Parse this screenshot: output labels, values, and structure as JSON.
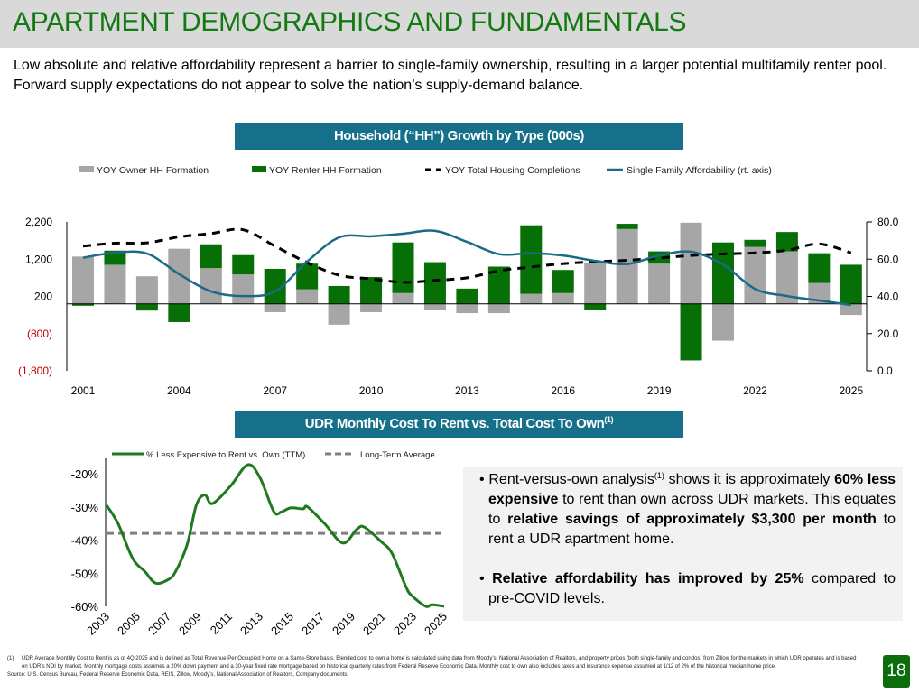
{
  "title": "APARTMENT DEMOGRAPHICS AND FUNDAMENTALS",
  "subtitle": "Low absolute and relative affordability represent a barrier to single-family ownership, resulting in a larger potential multifamily renter pool. Forward supply expectations do not appear to solve the nation’s supply-demand balance.",
  "colors": {
    "brand_green": "#137a13",
    "teal": "#16708a",
    "owner_gray": "#a6a6a6",
    "renter_green": "#067006",
    "affordability_line": "#1b6a87",
    "bg_gray": "#d9d9d9"
  },
  "section1": {
    "title": "Household (“HH”) Growth by Type (000s)"
  },
  "section2": {
    "title": "UDR Monthly Cost To Rent vs. Total Cost To Own",
    "superscript": "(1)"
  },
  "chart_data": [
    {
      "type": "bar",
      "stacked": true,
      "legend_position": "top",
      "x": [
        2001,
        2002,
        2003,
        2004,
        2005,
        2006,
        2007,
        2008,
        2009,
        2010,
        2011,
        2012,
        2013,
        2014,
        2015,
        2016,
        2017,
        2018,
        2019,
        2020,
        2021,
        2022,
        2023,
        2024,
        2025
      ],
      "x_tick_labels": [
        "2001",
        "2004",
        "2007",
        "2010",
        "2013",
        "2016",
        "2019",
        "2022",
        "2025"
      ],
      "y_left": {
        "ylim": [
          -1800,
          2200
        ],
        "tick_labels": [
          "2,200",
          "1,200",
          "200",
          "(800)",
          "(1,800)"
        ]
      },
      "y_right": {
        "ylim": [
          0,
          80
        ],
        "tick_labels": [
          "80.0",
          "60.0",
          "40.0",
          "20.0",
          "0.0"
        ]
      },
      "series": [
        {
          "name": "YOY Owner HH Formation",
          "kind": "bar",
          "axis": "left",
          "values": [
            1270,
            1050,
            740,
            1480,
            960,
            790,
            -225,
            390,
            -560,
            -225,
            290,
            -155,
            -250,
            -250,
            270,
            290,
            1110,
            2010,
            1080,
            2180,
            -990,
            1530,
            1410,
            560,
            -300
          ]
        },
        {
          "name": "YOY Renter HH Formation",
          "kind": "bar",
          "axis": "left",
          "values": [
            -50,
            380,
            -180,
            -490,
            640,
            520,
            940,
            690,
            480,
            720,
            1360,
            1120,
            410,
            1000,
            1840,
            620,
            -155,
            140,
            330,
            -1520,
            1650,
            190,
            520,
            800,
            1050
          ]
        },
        {
          "name": "YOY Total Housing Completions",
          "kind": "line-dashed",
          "axis": "left",
          "values": [
            1550,
            1630,
            1640,
            1800,
            1890,
            1990,
            1550,
            1110,
            770,
            670,
            580,
            630,
            700,
            890,
            990,
            1080,
            1130,
            1170,
            1230,
            1300,
            1340,
            1370,
            1440,
            1610,
            1370
          ]
        },
        {
          "name": "Single Family Affordability (rt. axis)",
          "kind": "line",
          "axis": "right",
          "values": [
            60.8,
            63.5,
            63,
            52,
            42.7,
            40.2,
            42.7,
            58.7,
            71.7,
            72.3,
            73.7,
            75.2,
            69.3,
            62.7,
            63.2,
            62,
            59.1,
            57.4,
            62,
            64,
            57.1,
            44,
            40.2,
            37.8,
            35.4
          ]
        }
      ]
    },
    {
      "type": "line",
      "legend_position": "top",
      "x_tick_labels": [
        "2003",
        "2005",
        "2007",
        "2009",
        "2011",
        "2013",
        "2015",
        "2017",
        "2019",
        "2021",
        "2023",
        "2025"
      ],
      "ylim": [
        -60,
        -20
      ],
      "y_tick_labels": [
        "-20%",
        "-30%",
        "-40%",
        "-50%",
        "-60%"
      ],
      "series": [
        {
          "name": "% Less Expensive to Rent vs. Own (TTM)",
          "x": [
            2003.0,
            2003.75,
            2004.7,
            2005.5,
            2006.2,
            2007.0,
            2007.5,
            2008.25,
            2008.85,
            2009.4,
            2009.9,
            2011.1,
            2012.2,
            2013.0,
            2013.9,
            2014.4,
            2015.0,
            2015.8,
            2016.1,
            2017.2,
            2018.4,
            2019.3,
            2019.8,
            2020.9,
            2021.6,
            2022.5,
            2022.9,
            2023.8,
            2024.2,
            2025.0
          ],
          "values": [
            -29.5,
            -35,
            -45.5,
            -49.5,
            -53,
            -52,
            -49.5,
            -41.4,
            -29.5,
            -26.4,
            -29,
            -23.6,
            -17.3,
            -21.2,
            -31.4,
            -31.5,
            -30.3,
            -30.6,
            -30,
            -35,
            -40.9,
            -36.8,
            -36.1,
            -40.5,
            -44,
            -54,
            -56.8,
            -60,
            -59.5,
            -60
          ]
        },
        {
          "name": "Long-Term Average",
          "kind": "dashed",
          "value": -38
        }
      ]
    }
  ],
  "callout": {
    "b1_a": "Rent-versus-own analysis",
    "b1_sup": "(1)",
    "b1_b": " shows it is approximately ",
    "b1_bold1": "60% less expensive",
    "b1_c": " to rent than own across UDR markets. This equates to ",
    "b1_bold2": "relative savings of approximately $3,300 per month",
    "b1_d": " to rent a UDR apartment home.",
    "b2_bold": "Relative affordability has improved by 25%",
    "b2_rest": " compared to pre-COVID levels."
  },
  "footnote": {
    "num": "(1)",
    "text": "UDR Average Monthly Cost to Rent is as of 4Q 2025 and is defined as Total Revenue Per Occupied Home on a Same-Store basis. Blended cost to own a home is calculated using data from Moody’s, National Association of Realtors, and property prices (both single-family and condos) from Zillow for the markets in which UDR operates and is based on UDR’s NOI by market. Monthly mortgage costs assumes a 20% down payment and a 30-year fixed rate mortgage based on historical quarterly rates from Federal Reserve Economic Data. Monthly cost to own also includes taxes and insurance expense assumed at 1/12 of 2% of the historical median home price.",
    "source": "Source: U.S. Census Bureau, Federal Reserve Economic Data, REIS, Zillow, Moody’s, National Association of Realtors, Company documents."
  },
  "page_number": "18"
}
